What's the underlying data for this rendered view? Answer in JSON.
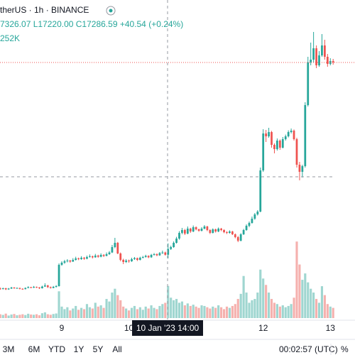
{
  "chart_data": {
    "type": "candlestick",
    "symbol": "therUS · 1h · BINANCE",
    "ohlc_readout": "7326.07 L17220.00 C17286.59 +40.54 (+0.24%)",
    "volume_readout": "252K",
    "crosshair_time": "10 Jan '23 14:00",
    "range_buttons": [
      "3M",
      "6M",
      "YTD",
      "1Y",
      "5Y",
      "All"
    ],
    "clock": "00:02:57 (UTC)",
    "percent_toggle": "%",
    "up_color": "#26a69a",
    "down_color": "#ef5350",
    "up_volume_color": "#9fd6d0",
    "down_volume_color": "#f5b1ae",
    "xlim": [
      -0.08,
      119.2
    ],
    "xticks": [
      {
        "value": 22,
        "label": "9"
      },
      {
        "value": 46,
        "label": "10"
      },
      {
        "value": 94,
        "label": "12"
      },
      {
        "value": 118,
        "label": "13"
      }
    ],
    "ylim": [
      16740,
      19040
    ],
    "vlim": [
      0,
      640
    ],
    "ohlc": [
      [
        17008,
        17015,
        17000,
        17005
      ],
      [
        17005,
        17014,
        17001,
        17010
      ],
      [
        17010,
        17013,
        16998,
        17002
      ],
      [
        17002,
        17012,
        16999,
        17008
      ],
      [
        17008,
        17020,
        17005,
        17015
      ],
      [
        17015,
        17018,
        17006,
        17010
      ],
      [
        17010,
        17016,
        17007,
        17012
      ],
      [
        17012,
        17014,
        17002,
        17006
      ],
      [
        17006,
        17010,
        17000,
        17004
      ],
      [
        17004,
        17016,
        17002,
        17012
      ],
      [
        17012,
        17024,
        17010,
        17018
      ],
      [
        17018,
        17020,
        17010,
        17014
      ],
      [
        17014,
        17026,
        17012,
        17020
      ],
      [
        17020,
        17022,
        17012,
        17016
      ],
      [
        17016,
        17018,
        17005,
        17010
      ],
      [
        17010,
        17028,
        17008,
        17022
      ],
      [
        17022,
        17045,
        17020,
        17030
      ],
      [
        17030,
        17034,
        17012,
        17018
      ],
      [
        17018,
        17022,
        17008,
        17012
      ],
      [
        17012,
        17026,
        17010,
        17020
      ],
      [
        17020,
        17032,
        17015,
        17025
      ],
      [
        17025,
        17185,
        17022,
        17175
      ],
      [
        17175,
        17200,
        17168,
        17190
      ],
      [
        17190,
        17210,
        17182,
        17200
      ],
      [
        17200,
        17215,
        17192,
        17205
      ],
      [
        17205,
        17210,
        17190,
        17198
      ],
      [
        17198,
        17222,
        17195,
        17210
      ],
      [
        17210,
        17232,
        17205,
        17220
      ],
      [
        17220,
        17226,
        17208,
        17215
      ],
      [
        17215,
        17236,
        17210,
        17225
      ],
      [
        17225,
        17230,
        17210,
        17218
      ],
      [
        17218,
        17240,
        17214,
        17230
      ],
      [
        17230,
        17248,
        17226,
        17235
      ],
      [
        17235,
        17240,
        17220,
        17228
      ],
      [
        17228,
        17252,
        17225,
        17240
      ],
      [
        17240,
        17246,
        17225,
        17232
      ],
      [
        17232,
        17256,
        17228,
        17245
      ],
      [
        17245,
        17250,
        17230,
        17238
      ],
      [
        17238,
        17262,
        17235,
        17250
      ],
      [
        17250,
        17272,
        17245,
        17262
      ],
      [
        17262,
        17315,
        17258,
        17300
      ],
      [
        17300,
        17365,
        17292,
        17330
      ],
      [
        17330,
        17336,
        17250,
        17255
      ],
      [
        17255,
        17262,
        17200,
        17210
      ],
      [
        17210,
        17218,
        17180,
        17195
      ],
      [
        17195,
        17215,
        17188,
        17205
      ],
      [
        17205,
        17212,
        17190,
        17200
      ],
      [
        17200,
        17225,
        17196,
        17215
      ],
      [
        17215,
        17230,
        17210,
        17222
      ],
      [
        17222,
        17226,
        17202,
        17210
      ],
      [
        17210,
        17232,
        17206,
        17225
      ],
      [
        17225,
        17238,
        17220,
        17230
      ],
      [
        17230,
        17246,
        17226,
        17238
      ],
      [
        17238,
        17242,
        17222,
        17228
      ],
      [
        17228,
        17252,
        17224,
        17245
      ],
      [
        17245,
        17258,
        17240,
        17250
      ],
      [
        17250,
        17256,
        17236,
        17242
      ],
      [
        17242,
        17265,
        17238,
        17258
      ],
      [
        17258,
        17275,
        17252,
        17262
      ],
      [
        17262,
        17268,
        17240,
        17246.05
      ],
      [
        17246.05,
        17326.07,
        17220,
        17286.59
      ],
      [
        17286.59,
        17310,
        17280,
        17300
      ],
      [
        17300,
        17340,
        17295,
        17330
      ],
      [
        17330,
        17372,
        17325,
        17360
      ],
      [
        17360,
        17412,
        17352,
        17400
      ],
      [
        17400,
        17435,
        17390,
        17420
      ],
      [
        17420,
        17428,
        17385,
        17395
      ],
      [
        17395,
        17445,
        17390,
        17430
      ],
      [
        17430,
        17436,
        17400,
        17410
      ],
      [
        17410,
        17452,
        17405,
        17440
      ],
      [
        17440,
        17446,
        17418,
        17425
      ],
      [
        17425,
        17430,
        17408,
        17415
      ],
      [
        17415,
        17440,
        17410,
        17430
      ],
      [
        17430,
        17455,
        17425,
        17445
      ],
      [
        17445,
        17450,
        17412,
        17420
      ],
      [
        17420,
        17426,
        17392,
        17400
      ],
      [
        17400,
        17432,
        17396,
        17425
      ],
      [
        17425,
        17430,
        17402,
        17410
      ],
      [
        17410,
        17438,
        17405,
        17430
      ],
      [
        17430,
        17435,
        17412,
        17420
      ],
      [
        17420,
        17426,
        17398,
        17405
      ],
      [
        17405,
        17412,
        17392,
        17400
      ],
      [
        17400,
        17418,
        17395,
        17410
      ],
      [
        17410,
        17414,
        17385,
        17390
      ],
      [
        17390,
        17396,
        17362,
        17370
      ],
      [
        17370,
        17378,
        17335,
        17345
      ],
      [
        17345,
        17398,
        17340,
        17390
      ],
      [
        17390,
        17428,
        17385,
        17420
      ],
      [
        17420,
        17460,
        17415,
        17450
      ],
      [
        17450,
        17480,
        17440,
        17470
      ],
      [
        17470,
        17515,
        17465,
        17500
      ],
      [
        17500,
        17540,
        17492,
        17530
      ],
      [
        17530,
        17560,
        17522,
        17550
      ],
      [
        17550,
        17860,
        17545,
        17840
      ],
      [
        17840,
        18130,
        17830,
        18100
      ],
      [
        18100,
        18125,
        18040,
        18080
      ],
      [
        18080,
        18140,
        18070,
        18110
      ],
      [
        18110,
        18118,
        18000,
        18020
      ],
      [
        18020,
        18030,
        17960,
        17990
      ],
      [
        17990,
        18065,
        17980,
        18050
      ],
      [
        18050,
        18058,
        17985,
        18000
      ],
      [
        18000,
        18075,
        17995,
        18060
      ],
      [
        18060,
        18092,
        18050,
        18080
      ],
      [
        18080,
        18122,
        18072,
        18110
      ],
      [
        18110,
        18135,
        18100,
        18120
      ],
      [
        18120,
        18128,
        18050,
        18060
      ],
      [
        18060,
        18070,
        17860,
        17880
      ],
      [
        17880,
        17900,
        17770,
        17830
      ],
      [
        17830,
        17880,
        17790,
        17870
      ],
      [
        17870,
        18320,
        17860,
        18300
      ],
      [
        18300,
        18640,
        18290,
        18600
      ],
      [
        18600,
        18740,
        18580,
        18620
      ],
      [
        18620,
        18815,
        18600,
        18700
      ],
      [
        18700,
        18720,
        18560,
        18580
      ],
      [
        18580,
        18680,
        18570,
        18650
      ],
      [
        18650,
        18800,
        18640,
        18720
      ],
      [
        18720,
        18760,
        18620,
        18640
      ],
      [
        18640,
        18660,
        18570,
        18590
      ],
      [
        18590,
        18630,
        18580,
        18610
      ],
      [
        18610,
        18625,
        18585,
        18600
      ]
    ],
    "volume": [
      30,
      25,
      35,
      20,
      28,
      32,
      22,
      26,
      30,
      24,
      34,
      28,
      26,
      30,
      22,
      38,
      45,
      30,
      26,
      32,
      36,
      210,
      90,
      70,
      85,
      60,
      75,
      95,
      65,
      80,
      70,
      110,
      85,
      75,
      120,
      90,
      100,
      80,
      150,
      130,
      200,
      230,
      180,
      140,
      90,
      75,
      60,
      80,
      95,
      70,
      85,
      65,
      90,
      75,
      100,
      80,
      70,
      95,
      110,
      120,
      252,
      160,
      140,
      150,
      120,
      130,
      100,
      115,
      95,
      105,
      90,
      80,
      100,
      95,
      85,
      75,
      90,
      80,
      100,
      85,
      70,
      90,
      80,
      95,
      110,
      150,
      190,
      330,
      200,
      120,
      140,
      150,
      200,
      380,
      310,
      260,
      200,
      150,
      120,
      110,
      90,
      100,
      85,
      95,
      110,
      160,
      600,
      420,
      300,
      350,
      280,
      230,
      200,
      150,
      120,
      250,
      180,
      110,
      90,
      80
    ]
  }
}
